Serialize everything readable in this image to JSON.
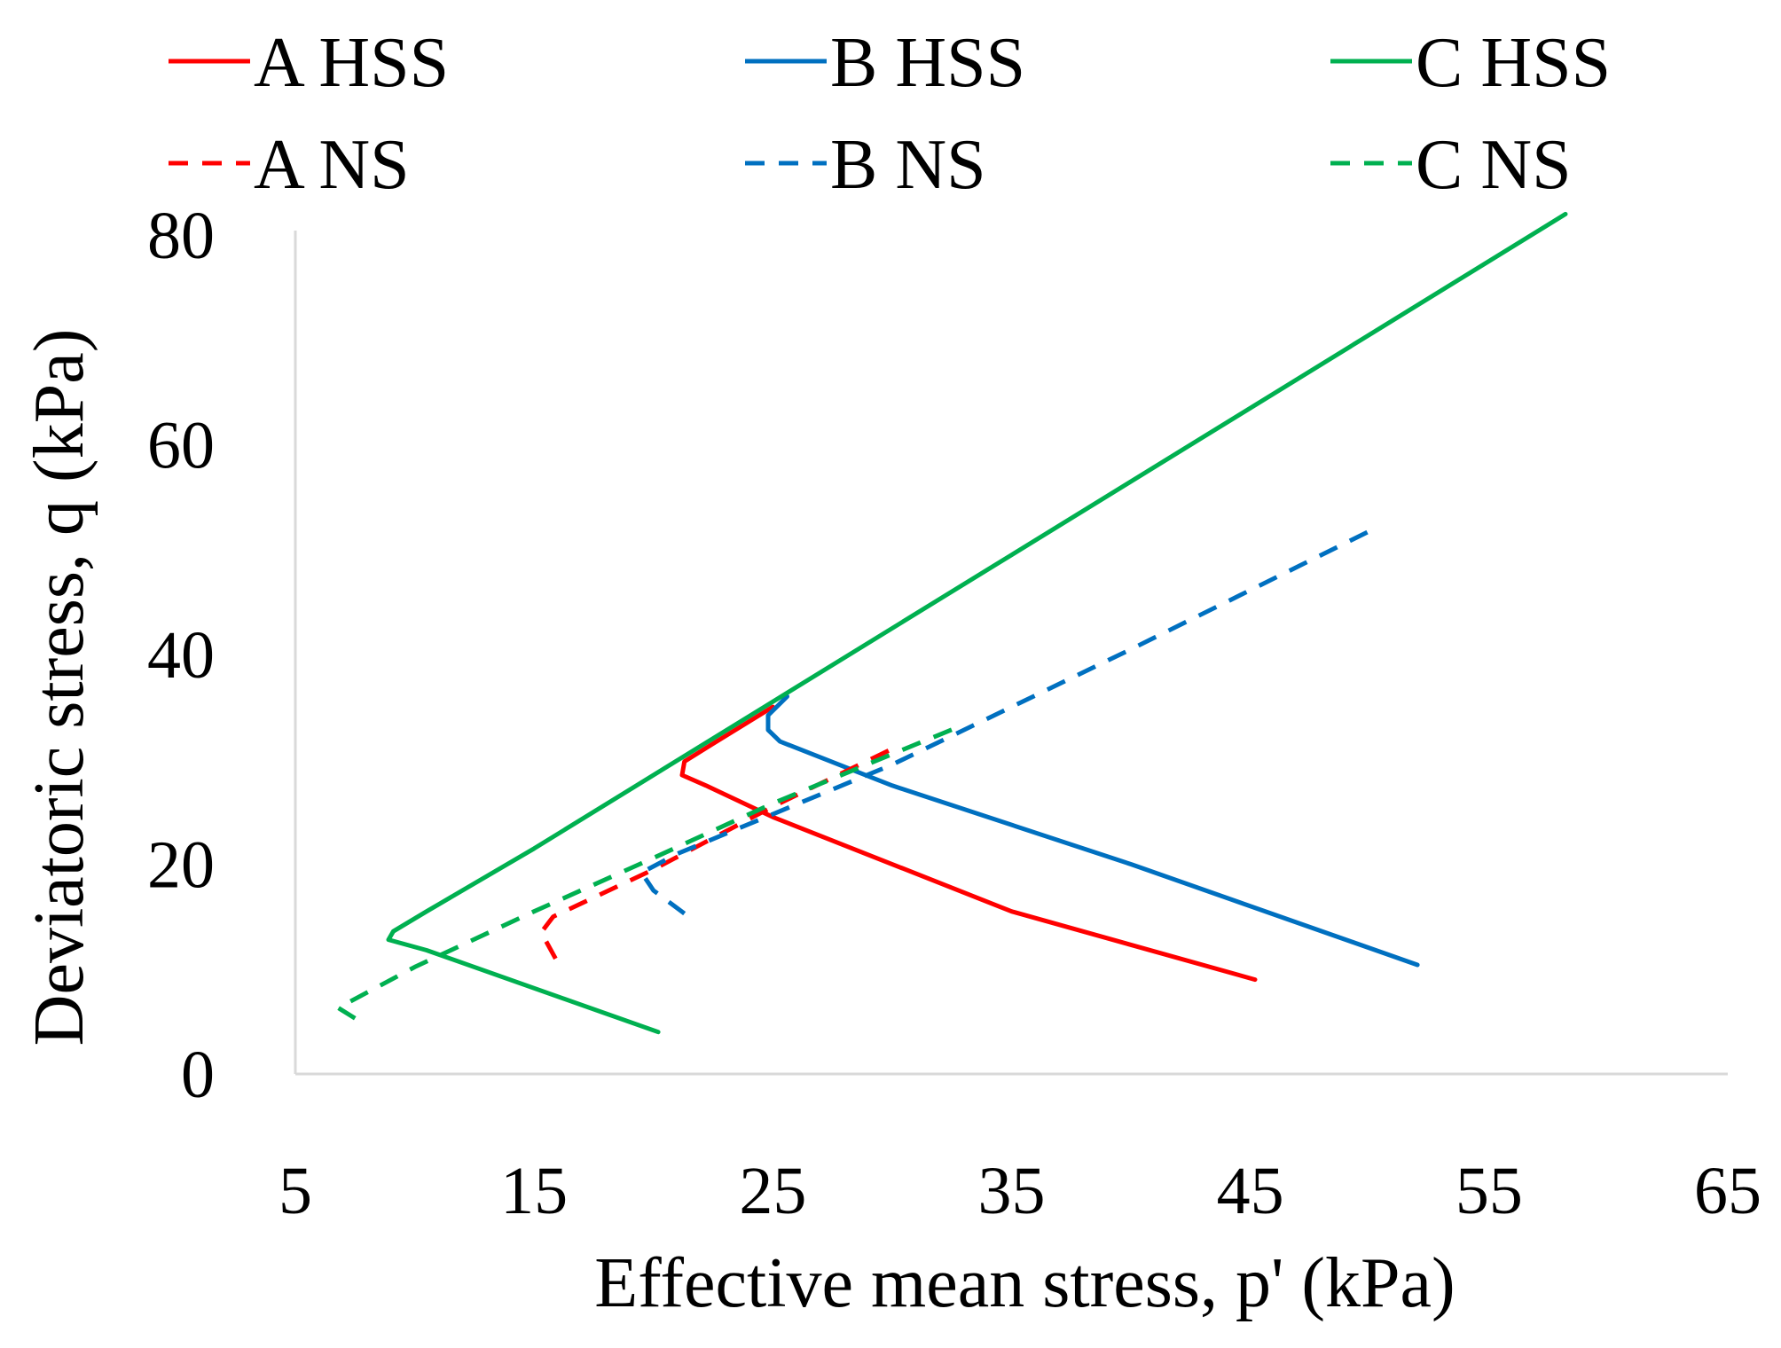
{
  "chart_data": {
    "type": "line",
    "title": "",
    "xlabel": "Effective mean stress, p' (kPa)",
    "ylabel": "Deviatoric stress, q (kPa)",
    "xlim": [
      5,
      65
    ],
    "ylim": [
      0,
      80
    ],
    "xticks": [
      5,
      15,
      25,
      35,
      45,
      55,
      65
    ],
    "yticks": [
      0,
      20,
      40,
      60,
      80
    ],
    "grid": false,
    "legend_position": "top",
    "series": [
      {
        "name": "A HSS",
        "color": "#ff0000",
        "style": "solid",
        "points": [
          [
            45.2,
            9.0
          ],
          [
            35,
            15.5
          ],
          [
            25,
            24.5
          ],
          [
            22.2,
            27.5
          ],
          [
            21.2,
            28.5
          ],
          [
            21.3,
            29.8
          ],
          [
            22.5,
            31.5
          ],
          [
            25,
            35
          ]
        ]
      },
      {
        "name": "B HSS",
        "color": "#0070c0",
        "style": "solid",
        "points": [
          [
            52,
            10.4
          ],
          [
            40,
            20
          ],
          [
            30,
            27.5
          ],
          [
            25.3,
            31.7
          ],
          [
            24.8,
            32.8
          ],
          [
            24.8,
            34.2
          ],
          [
            25.6,
            36
          ]
        ]
      },
      {
        "name": "C HSS",
        "color": "#00b050",
        "style": "solid",
        "points": [
          [
            20.2,
            4.0
          ],
          [
            10.5,
            11.8
          ],
          [
            8.9,
            12.8
          ],
          [
            9.1,
            13.6
          ],
          [
            10.5,
            15.5
          ],
          [
            15,
            21.5
          ],
          [
            25,
            35.5
          ],
          [
            35,
            49.5
          ],
          [
            45,
            63.5
          ],
          [
            58.2,
            82
          ]
        ]
      },
      {
        "name": "A NS",
        "color": "#ff0000",
        "style": "dashed",
        "points": [
          [
            15.9,
            11.0
          ],
          [
            15.3,
            13.5
          ],
          [
            15.8,
            15
          ],
          [
            20,
            19.5
          ],
          [
            25,
            25.5
          ],
          [
            30,
            31
          ]
        ]
      },
      {
        "name": "B NS",
        "color": "#0070c0",
        "style": "dashed",
        "points": [
          [
            21.3,
            15.3
          ],
          [
            20.0,
            17.5
          ],
          [
            19.5,
            19.2
          ],
          [
            21,
            21
          ],
          [
            30,
            29.5
          ],
          [
            40,
            40.5
          ],
          [
            50.2,
            52
          ]
        ]
      },
      {
        "name": "C NS",
        "color": "#00b050",
        "style": "dashed",
        "points": [
          [
            7.5,
            5.3
          ],
          [
            6.8,
            6.3
          ],
          [
            10,
            10.2
          ],
          [
            15,
            15.5
          ],
          [
            20,
            20.6
          ],
          [
            25,
            25.8
          ],
          [
            30,
            30.5
          ],
          [
            33,
            33.3
          ]
        ]
      }
    ]
  }
}
